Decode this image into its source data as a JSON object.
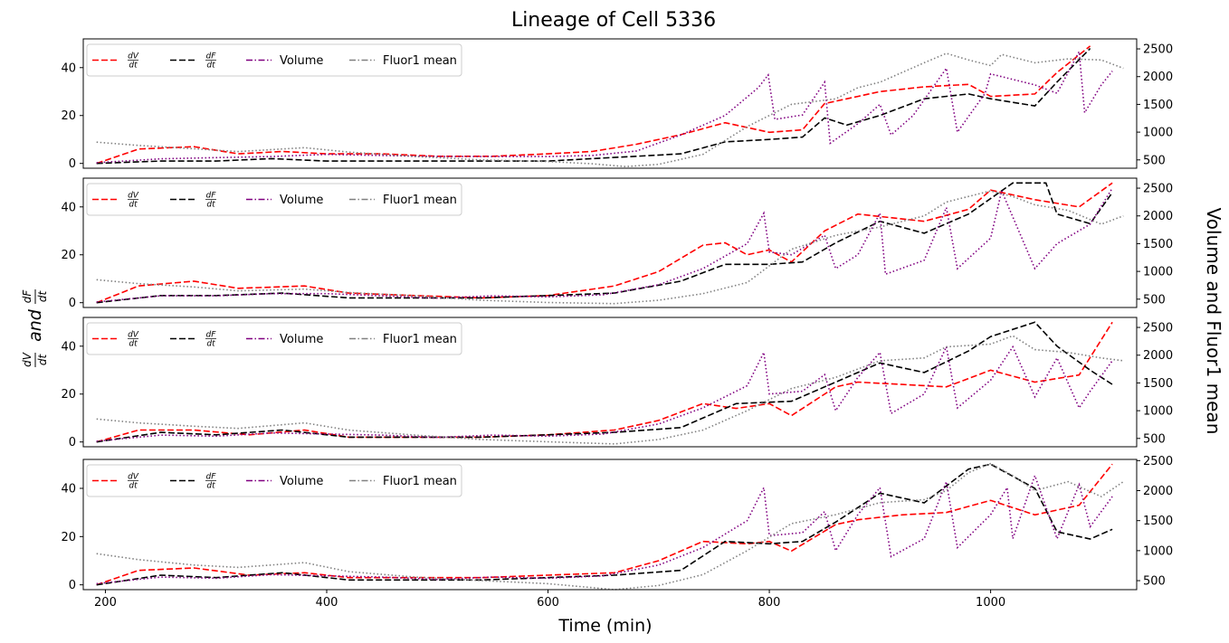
{
  "figure": {
    "title": "Lineage of Cell 5336",
    "xlabel": "Time (min)",
    "ylabel_left": {
      "num1": "dV",
      "den1": "dt",
      "word": "and",
      "num2": "dF",
      "den2": "dt"
    },
    "ylabel_right": "Volume and Fluor1 mean"
  },
  "legend": [
    {
      "key": "dv",
      "num": "dV",
      "den": "dt",
      "color": "#ff0000",
      "dash": "dashed"
    },
    {
      "key": "df",
      "num": "dF",
      "den": "dt",
      "color": "#000000",
      "dash": "dashed"
    },
    {
      "key": "vol",
      "label": "Volume",
      "color": "#800080",
      "dash": "dashdot"
    },
    {
      "key": "fl",
      "label": "Fluor1 mean",
      "color": "#808080",
      "dash": "dashdot"
    }
  ],
  "chart_data": [
    {
      "type": "line",
      "panel": 1,
      "xlim": [
        180,
        1132
      ],
      "ylim_left": [
        -2,
        52
      ],
      "ylim_right": [
        350,
        2680
      ],
      "xticks": [
        200,
        400,
        600,
        800,
        1000
      ],
      "yticks_left": [
        0,
        20,
        40
      ],
      "yticks_right": [
        500,
        1000,
        1500,
        2000,
        2500
      ],
      "grid": false,
      "legend_position": "upper-left",
      "series": [
        {
          "key": "dv",
          "axis": "left",
          "style": "dashed",
          "color": "#ff0000",
          "x": [
            192,
            230,
            280,
            320,
            360,
            400,
            450,
            500,
            550,
            600,
            640,
            680,
            720,
            760,
            800,
            830,
            850,
            880,
            900,
            940,
            980,
            1000,
            1040,
            1060,
            1090
          ],
          "y": [
            0,
            6,
            7,
            4,
            5,
            4,
            4,
            3,
            3,
            4,
            5,
            8,
            12,
            17,
            13,
            14,
            25,
            28,
            30,
            32,
            33,
            28,
            29,
            38,
            49
          ]
        },
        {
          "key": "df",
          "axis": "left",
          "style": "dashed",
          "color": "#000000",
          "x": [
            192,
            250,
            300,
            350,
            400,
            450,
            500,
            550,
            600,
            640,
            680,
            720,
            760,
            800,
            830,
            850,
            870,
            900,
            940,
            980,
            1000,
            1040,
            1060,
            1090
          ],
          "y": [
            0,
            1,
            1,
            2,
            1,
            1,
            1,
            1,
            1,
            2,
            3,
            4,
            9,
            10,
            11,
            19,
            16,
            20,
            27,
            29,
            27,
            24,
            34,
            48
          ]
        },
        {
          "key": "vol",
          "axis": "right",
          "style": "dotted",
          "color": "#800080",
          "x": [
            192,
            250,
            300,
            350,
            400,
            450,
            500,
            550,
            600,
            640,
            680,
            720,
            760,
            790,
            799,
            805,
            830,
            850,
            855,
            880,
            900,
            910,
            930,
            960,
            970,
            995,
            1000,
            1040,
            1060,
            1080,
            1085,
            1100,
            1110
          ],
          "y": [
            450,
            520,
            540,
            560,
            600,
            580,
            560,
            560,
            560,
            580,
            660,
            950,
            1300,
            1800,
            2030,
            1230,
            1310,
            1900,
            800,
            1150,
            1500,
            950,
            1300,
            2150,
            1000,
            1700,
            2050,
            1850,
            1700,
            2450,
            1350,
            1850,
            2100
          ]
        },
        {
          "key": "fl",
          "axis": "right",
          "style": "dotted",
          "color": "#808080",
          "x": [
            192,
            230,
            280,
            320,
            380,
            420,
            480,
            540,
            600,
            640,
            670,
            700,
            740,
            780,
            820,
            860,
            880,
            900,
            940,
            960,
            980,
            1000,
            1010,
            1040,
            1070,
            1100,
            1120
          ],
          "y": [
            820,
            760,
            700,
            650,
            720,
            640,
            560,
            500,
            470,
            430,
            380,
            420,
            600,
            1100,
            1500,
            1600,
            1800,
            1900,
            2250,
            2420,
            2300,
            2200,
            2400,
            2250,
            2320,
            2300,
            2150
          ]
        }
      ]
    },
    {
      "type": "line",
      "panel": 2,
      "xlim": [
        180,
        1132
      ],
      "ylim_left": [
        -2,
        52
      ],
      "ylim_right": [
        350,
        2680
      ],
      "xticks": [
        200,
        400,
        600,
        800,
        1000
      ],
      "yticks_left": [
        0,
        20,
        40
      ],
      "yticks_right": [
        500,
        1000,
        1500,
        2000,
        2500
      ],
      "grid": false,
      "legend_position": "upper-left",
      "series": [
        {
          "key": "dv",
          "axis": "left",
          "style": "dashed",
          "color": "#ff0000",
          "x": [
            192,
            230,
            280,
            320,
            380,
            420,
            480,
            540,
            600,
            660,
            700,
            740,
            760,
            780,
            800,
            820,
            850,
            880,
            900,
            940,
            980,
            1000,
            1040,
            1080,
            1110
          ],
          "y": [
            0,
            7,
            9,
            6,
            7,
            4,
            3,
            2,
            3,
            7,
            13,
            24,
            25,
            20,
            22,
            17,
            30,
            37,
            36,
            34,
            39,
            47,
            43,
            40,
            50
          ]
        },
        {
          "key": "df",
          "axis": "left",
          "style": "dashed",
          "color": "#000000",
          "x": [
            192,
            250,
            300,
            360,
            420,
            480,
            540,
            600,
            660,
            720,
            760,
            800,
            830,
            860,
            900,
            940,
            980,
            1020,
            1050,
            1060,
            1090,
            1110
          ],
          "y": [
            0,
            3,
            3,
            4,
            2,
            2,
            2,
            3,
            4,
            9,
            16,
            16,
            17,
            25,
            34,
            29,
            37,
            50,
            50,
            37,
            33,
            46
          ]
        },
        {
          "key": "vol",
          "axis": "right",
          "style": "dotted",
          "color": "#800080",
          "x": [
            192,
            250,
            300,
            350,
            400,
            450,
            500,
            550,
            600,
            650,
            700,
            740,
            780,
            795,
            800,
            820,
            850,
            860,
            880,
            900,
            905,
            940,
            960,
            970,
            1000,
            1010,
            1040,
            1060,
            1090,
            1110
          ],
          "y": [
            450,
            560,
            560,
            600,
            600,
            560,
            520,
            560,
            540,
            580,
            760,
            1050,
            1500,
            2050,
            1350,
            1300,
            1650,
            1050,
            1300,
            2050,
            950,
            1200,
            2150,
            1050,
            1600,
            2450,
            1050,
            1500,
            1850,
            2500
          ]
        },
        {
          "key": "fl",
          "axis": "right",
          "style": "dotted",
          "color": "#808080",
          "x": [
            192,
            230,
            280,
            320,
            380,
            420,
            480,
            540,
            600,
            660,
            700,
            740,
            780,
            820,
            860,
            900,
            940,
            960,
            1000,
            1020,
            1040,
            1070,
            1100,
            1120
          ],
          "y": [
            850,
            780,
            720,
            650,
            680,
            620,
            560,
            480,
            440,
            420,
            480,
            600,
            800,
            1400,
            1650,
            1800,
            2000,
            2250,
            2450,
            2350,
            2200,
            2100,
            1850,
            2000
          ]
        }
      ]
    },
    {
      "type": "line",
      "panel": 3,
      "xlim": [
        180,
        1132
      ],
      "ylim_left": [
        -2,
        52
      ],
      "ylim_right": [
        350,
        2680
      ],
      "xticks": [
        200,
        400,
        600,
        800,
        1000
      ],
      "yticks_left": [
        0,
        20,
        40
      ],
      "yticks_right": [
        500,
        1000,
        1500,
        2000,
        2500
      ],
      "grid": false,
      "legend_position": "upper-left",
      "series": [
        {
          "key": "dv",
          "axis": "left",
          "style": "dashed",
          "color": "#ff0000",
          "x": [
            192,
            230,
            280,
            330,
            380,
            420,
            480,
            540,
            600,
            660,
            700,
            740,
            770,
            800,
            820,
            860,
            880,
            920,
            960,
            1000,
            1040,
            1080,
            1110
          ],
          "y": [
            0,
            5,
            5,
            3,
            5,
            2,
            2,
            2,
            3,
            5,
            9,
            16,
            14,
            16,
            11,
            23,
            25,
            24,
            23,
            30,
            25,
            28,
            50
          ]
        },
        {
          "key": "df",
          "axis": "left",
          "style": "dashed",
          "color": "#000000",
          "x": [
            192,
            250,
            300,
            360,
            420,
            480,
            540,
            600,
            660,
            720,
            770,
            820,
            860,
            900,
            940,
            980,
            1000,
            1040,
            1060,
            1090,
            1110
          ],
          "y": [
            0,
            4,
            3,
            5,
            2,
            2,
            2,
            3,
            4,
            6,
            16,
            17,
            25,
            33,
            29,
            38,
            44,
            50,
            40,
            30,
            24
          ]
        },
        {
          "key": "vol",
          "axis": "right",
          "style": "dotted",
          "color": "#800080",
          "x": [
            192,
            250,
            300,
            350,
            400,
            450,
            500,
            550,
            600,
            650,
            700,
            740,
            780,
            795,
            800,
            830,
            850,
            860,
            880,
            900,
            910,
            940,
            960,
            970,
            1000,
            1020,
            1040,
            1060,
            1080,
            1090,
            1110
          ],
          "y": [
            450,
            560,
            540,
            600,
            580,
            560,
            520,
            560,
            540,
            580,
            760,
            1050,
            1450,
            2050,
            1300,
            1350,
            1650,
            1000,
            1600,
            2050,
            950,
            1300,
            2150,
            1050,
            1550,
            2150,
            1250,
            1950,
            1050,
            1350,
            1900
          ]
        },
        {
          "key": "fl",
          "axis": "right",
          "style": "dotted",
          "color": "#808080",
          "x": [
            192,
            230,
            280,
            320,
            380,
            420,
            480,
            540,
            600,
            660,
            700,
            740,
            780,
            820,
            860,
            900,
            940,
            960,
            1000,
            1020,
            1040,
            1070,
            1100,
            1120
          ],
          "y": [
            850,
            780,
            720,
            680,
            780,
            650,
            560,
            480,
            440,
            400,
            480,
            650,
            1000,
            1400,
            1600,
            1900,
            1950,
            2150,
            2200,
            2350,
            2100,
            2050,
            1950,
            1900
          ]
        }
      ]
    },
    {
      "type": "line",
      "panel": 4,
      "xlim": [
        180,
        1132
      ],
      "ylim_left": [
        -2,
        52
      ],
      "ylim_right": [
        350,
        2520
      ],
      "xticks": [
        200,
        400,
        600,
        800,
        1000
      ],
      "yticks_left": [
        0,
        20,
        40
      ],
      "yticks_right": [
        500,
        1000,
        1500,
        2000,
        2500
      ],
      "grid": false,
      "legend_position": "upper-left",
      "series": [
        {
          "key": "dv",
          "axis": "left",
          "style": "dashed",
          "color": "#ff0000",
          "x": [
            192,
            230,
            280,
            330,
            380,
            420,
            480,
            540,
            600,
            660,
            700,
            740,
            780,
            800,
            820,
            860,
            880,
            920,
            960,
            1000,
            1040,
            1080,
            1110
          ],
          "y": [
            0,
            6,
            7,
            4,
            5,
            3,
            3,
            3,
            4,
            5,
            10,
            18,
            17,
            18,
            14,
            25,
            27,
            29,
            30,
            35,
            29,
            33,
            50
          ]
        },
        {
          "key": "df",
          "axis": "left",
          "style": "dashed",
          "color": "#000000",
          "x": [
            192,
            250,
            300,
            360,
            420,
            480,
            540,
            600,
            660,
            720,
            760,
            800,
            830,
            860,
            900,
            940,
            980,
            1000,
            1040,
            1060,
            1090,
            1110
          ],
          "y": [
            0,
            4,
            3,
            5,
            2,
            2,
            2,
            3,
            4,
            6,
            18,
            17,
            18,
            26,
            38,
            34,
            48,
            50,
            40,
            22,
            19,
            23
          ]
        },
        {
          "key": "vol",
          "axis": "right",
          "style": "dotted",
          "color": "#800080",
          "x": [
            192,
            250,
            300,
            350,
            400,
            450,
            500,
            550,
            600,
            650,
            700,
            740,
            780,
            795,
            800,
            830,
            850,
            860,
            880,
            900,
            910,
            940,
            960,
            970,
            1000,
            1015,
            1020,
            1040,
            1060,
            1080,
            1090,
            1110
          ],
          "y": [
            450,
            560,
            540,
            600,
            580,
            560,
            520,
            560,
            540,
            580,
            760,
            1050,
            1500,
            2050,
            1250,
            1300,
            1650,
            1000,
            1600,
            2050,
            900,
            1200,
            2150,
            1050,
            1600,
            2050,
            1200,
            2250,
            1200,
            2100,
            1400,
            1900
          ]
        },
        {
          "key": "fl",
          "axis": "right",
          "style": "dotted",
          "color": "#808080",
          "x": [
            192,
            230,
            280,
            320,
            380,
            420,
            480,
            540,
            600,
            660,
            700,
            740,
            780,
            820,
            860,
            900,
            940,
            960,
            980,
            1000,
            1020,
            1040,
            1070,
            1100,
            1120
          ],
          "y": [
            950,
            850,
            760,
            720,
            800,
            650,
            560,
            500,
            450,
            350,
            420,
            600,
            1000,
            1450,
            1600,
            1800,
            1850,
            2000,
            2300,
            2450,
            2250,
            2000,
            2150,
            1900,
            2150
          ]
        }
      ]
    }
  ]
}
